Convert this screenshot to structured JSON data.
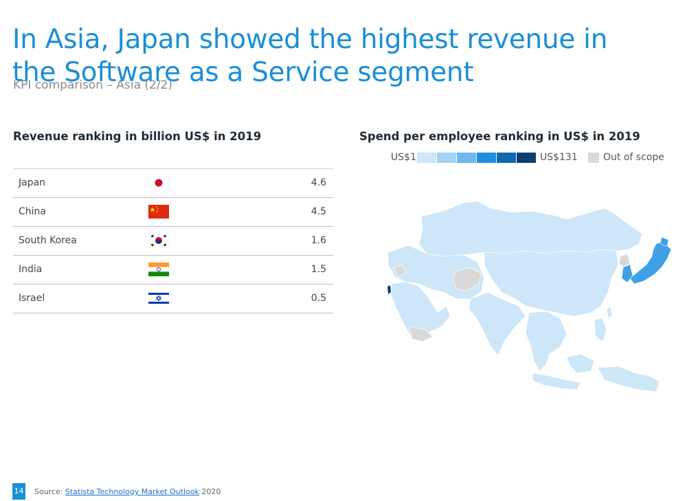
{
  "title": "In Asia, Japan showed the highest revenue in the Software as a Service segment",
  "subtitle": "KPI comparison – Asia (2/2)",
  "revenue_section": {
    "heading": "Revenue ranking in billion US$ in 2019"
  },
  "spend_section": {
    "heading": "Spend per employee ranking in US$ in 2019",
    "legend": {
      "min_label": "US$1",
      "max_label": "US$131",
      "scale_colors": [
        "#cde6f8",
        "#a3d2f4",
        "#6fb9ee",
        "#1e8ee0",
        "#0f68b0",
        "#0b3f73"
      ],
      "out_of_scope_label": "Out of scope",
      "out_of_scope_color": "#d9d9d9"
    }
  },
  "chart_data": [
    {
      "type": "table",
      "title": "Revenue ranking in billion US$ in 2019",
      "categories": [
        "Japan",
        "China",
        "South Korea",
        "India",
        "Israel"
      ],
      "values": [
        4.6,
        4.5,
        1.6,
        1.5,
        0.5
      ],
      "value_labels": [
        "4.6",
        "4.5",
        "1.6",
        "1.5",
        "0.5"
      ],
      "icons": [
        "japan-flag-icon",
        "china-flag-icon",
        "south-korea-flag-icon",
        "india-flag-icon",
        "israel-flag-icon"
      ]
    },
    {
      "type": "heatmap",
      "title": "Spend per employee ranking in US$ in 2019",
      "scale": {
        "min": 1,
        "max": 131,
        "unit": "US$"
      },
      "highlighted_regions": [
        "Japan",
        "Israel"
      ]
    }
  ],
  "footer": {
    "page_number": "14",
    "source_prefix": "Source: ",
    "source_link": "Statista Technology Market Outlook",
    "source_year": " 2020"
  }
}
